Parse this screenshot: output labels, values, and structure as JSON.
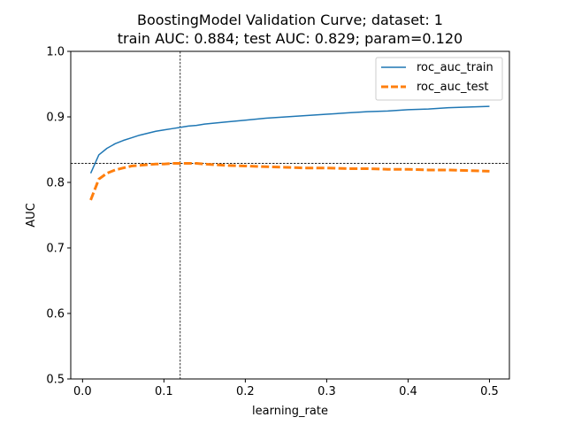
{
  "chart_data": {
    "type": "line",
    "title_line1": "BoostingModel Validation Curve; dataset: 1",
    "title_line2": "train AUC: 0.884; test AUC: 0.829; param=0.120",
    "xlabel": "learning_rate",
    "ylabel": "AUC",
    "xlim": [
      -0.0145,
      0.5245
    ],
    "ylim": [
      0.5,
      1.0
    ],
    "xticks": [
      0,
      0.1,
      0.2,
      0.3,
      0.4,
      0.5
    ],
    "xtick_labels": [
      "0.0",
      "0.1",
      "0.2",
      "0.3",
      "0.4",
      "0.5"
    ],
    "yticks": [
      0.5,
      0.6,
      0.7,
      0.8,
      0.9,
      1.0
    ],
    "ytick_labels": [
      "0.5",
      "0.6",
      "0.7",
      "0.8",
      "0.9",
      "1.0"
    ],
    "grid": false,
    "legend_position": "top-right",
    "reference_lines": {
      "vertical_x": 0.12,
      "horizontal_y": 0.829
    },
    "series": [
      {
        "name": "roc_auc_train",
        "color": "#1f77b4",
        "style": "solid",
        "x": [
          0.01,
          0.02,
          0.03,
          0.04,
          0.05,
          0.06,
          0.07,
          0.08,
          0.09,
          0.1,
          0.11,
          0.12,
          0.13,
          0.14,
          0.15,
          0.175,
          0.2,
          0.225,
          0.25,
          0.275,
          0.3,
          0.325,
          0.35,
          0.375,
          0.4,
          0.425,
          0.45,
          0.475,
          0.5
        ],
        "y": [
          0.814,
          0.842,
          0.852,
          0.859,
          0.864,
          0.868,
          0.872,
          0.875,
          0.878,
          0.88,
          0.882,
          0.884,
          0.886,
          0.887,
          0.889,
          0.892,
          0.895,
          0.898,
          0.9,
          0.902,
          0.904,
          0.906,
          0.908,
          0.909,
          0.911,
          0.912,
          0.914,
          0.915,
          0.916
        ]
      },
      {
        "name": "roc_auc_test",
        "color": "#ff7f0e",
        "style": "dashed",
        "x": [
          0.01,
          0.02,
          0.03,
          0.04,
          0.05,
          0.06,
          0.07,
          0.08,
          0.09,
          0.1,
          0.11,
          0.12,
          0.13,
          0.14,
          0.15,
          0.175,
          0.2,
          0.225,
          0.25,
          0.275,
          0.3,
          0.325,
          0.35,
          0.375,
          0.4,
          0.425,
          0.45,
          0.475,
          0.5
        ],
        "y": [
          0.773,
          0.805,
          0.814,
          0.819,
          0.822,
          0.825,
          0.826,
          0.827,
          0.828,
          0.828,
          0.829,
          0.829,
          0.829,
          0.829,
          0.828,
          0.826,
          0.825,
          0.824,
          0.823,
          0.822,
          0.822,
          0.821,
          0.821,
          0.82,
          0.82,
          0.819,
          0.819,
          0.818,
          0.817
        ]
      }
    ]
  }
}
